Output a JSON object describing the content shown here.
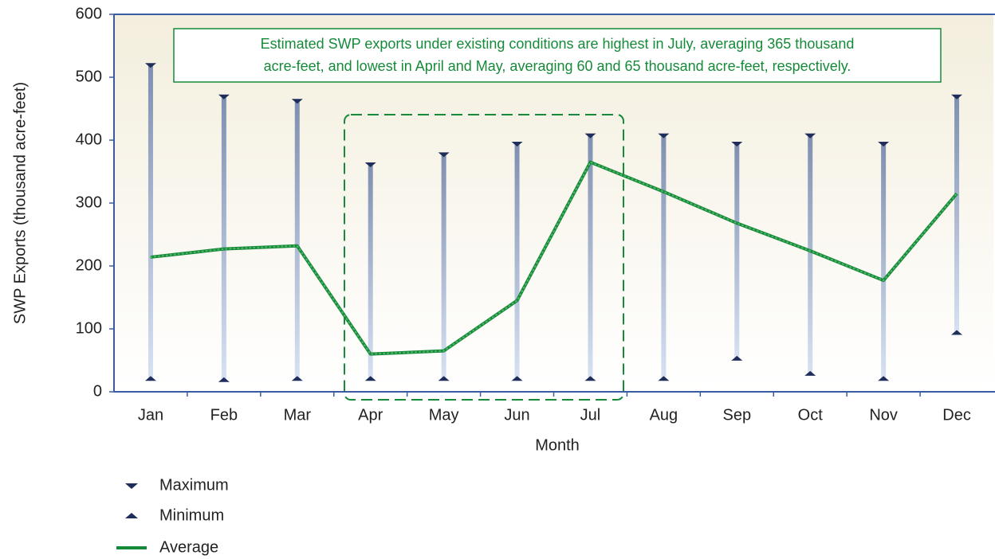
{
  "chart_data": {
    "type": "line",
    "annotation": [
      "Estimated SWP exports under existing conditions are highest in July, averaging 365 thousand",
      "acre-feet, and lowest in April and May, averaging 60 and 65 thousand acre-feet, respectively."
    ],
    "xlabel": "Month",
    "ylabel": "SWP Exports (thousand acre-feet)",
    "categories": [
      "Jan",
      "Feb",
      "Mar",
      "Apr",
      "May",
      "Jun",
      "Jul",
      "Aug",
      "Sep",
      "Oct",
      "Nov",
      "Dec"
    ],
    "series": [
      {
        "name": "Maximum",
        "color": "#1f2d5a",
        "values": [
          520,
          470,
          463,
          362,
          378,
          395,
          408,
          408,
          395,
          408,
          395,
          470
        ]
      },
      {
        "name": "Minimum",
        "color": "#1f2d5a",
        "values": [
          20,
          18,
          20,
          20,
          20,
          20,
          20,
          20,
          52,
          28,
          20,
          93
        ]
      },
      {
        "name": "Average",
        "color": "#178a3a",
        "values": [
          214,
          227,
          232,
          60,
          65,
          145,
          365,
          318,
          268,
          224,
          177,
          315
        ]
      }
    ],
    "ylim": [
      0,
      600
    ],
    "yticks": [
      0,
      100,
      200,
      300,
      400,
      500,
      600
    ]
  }
}
